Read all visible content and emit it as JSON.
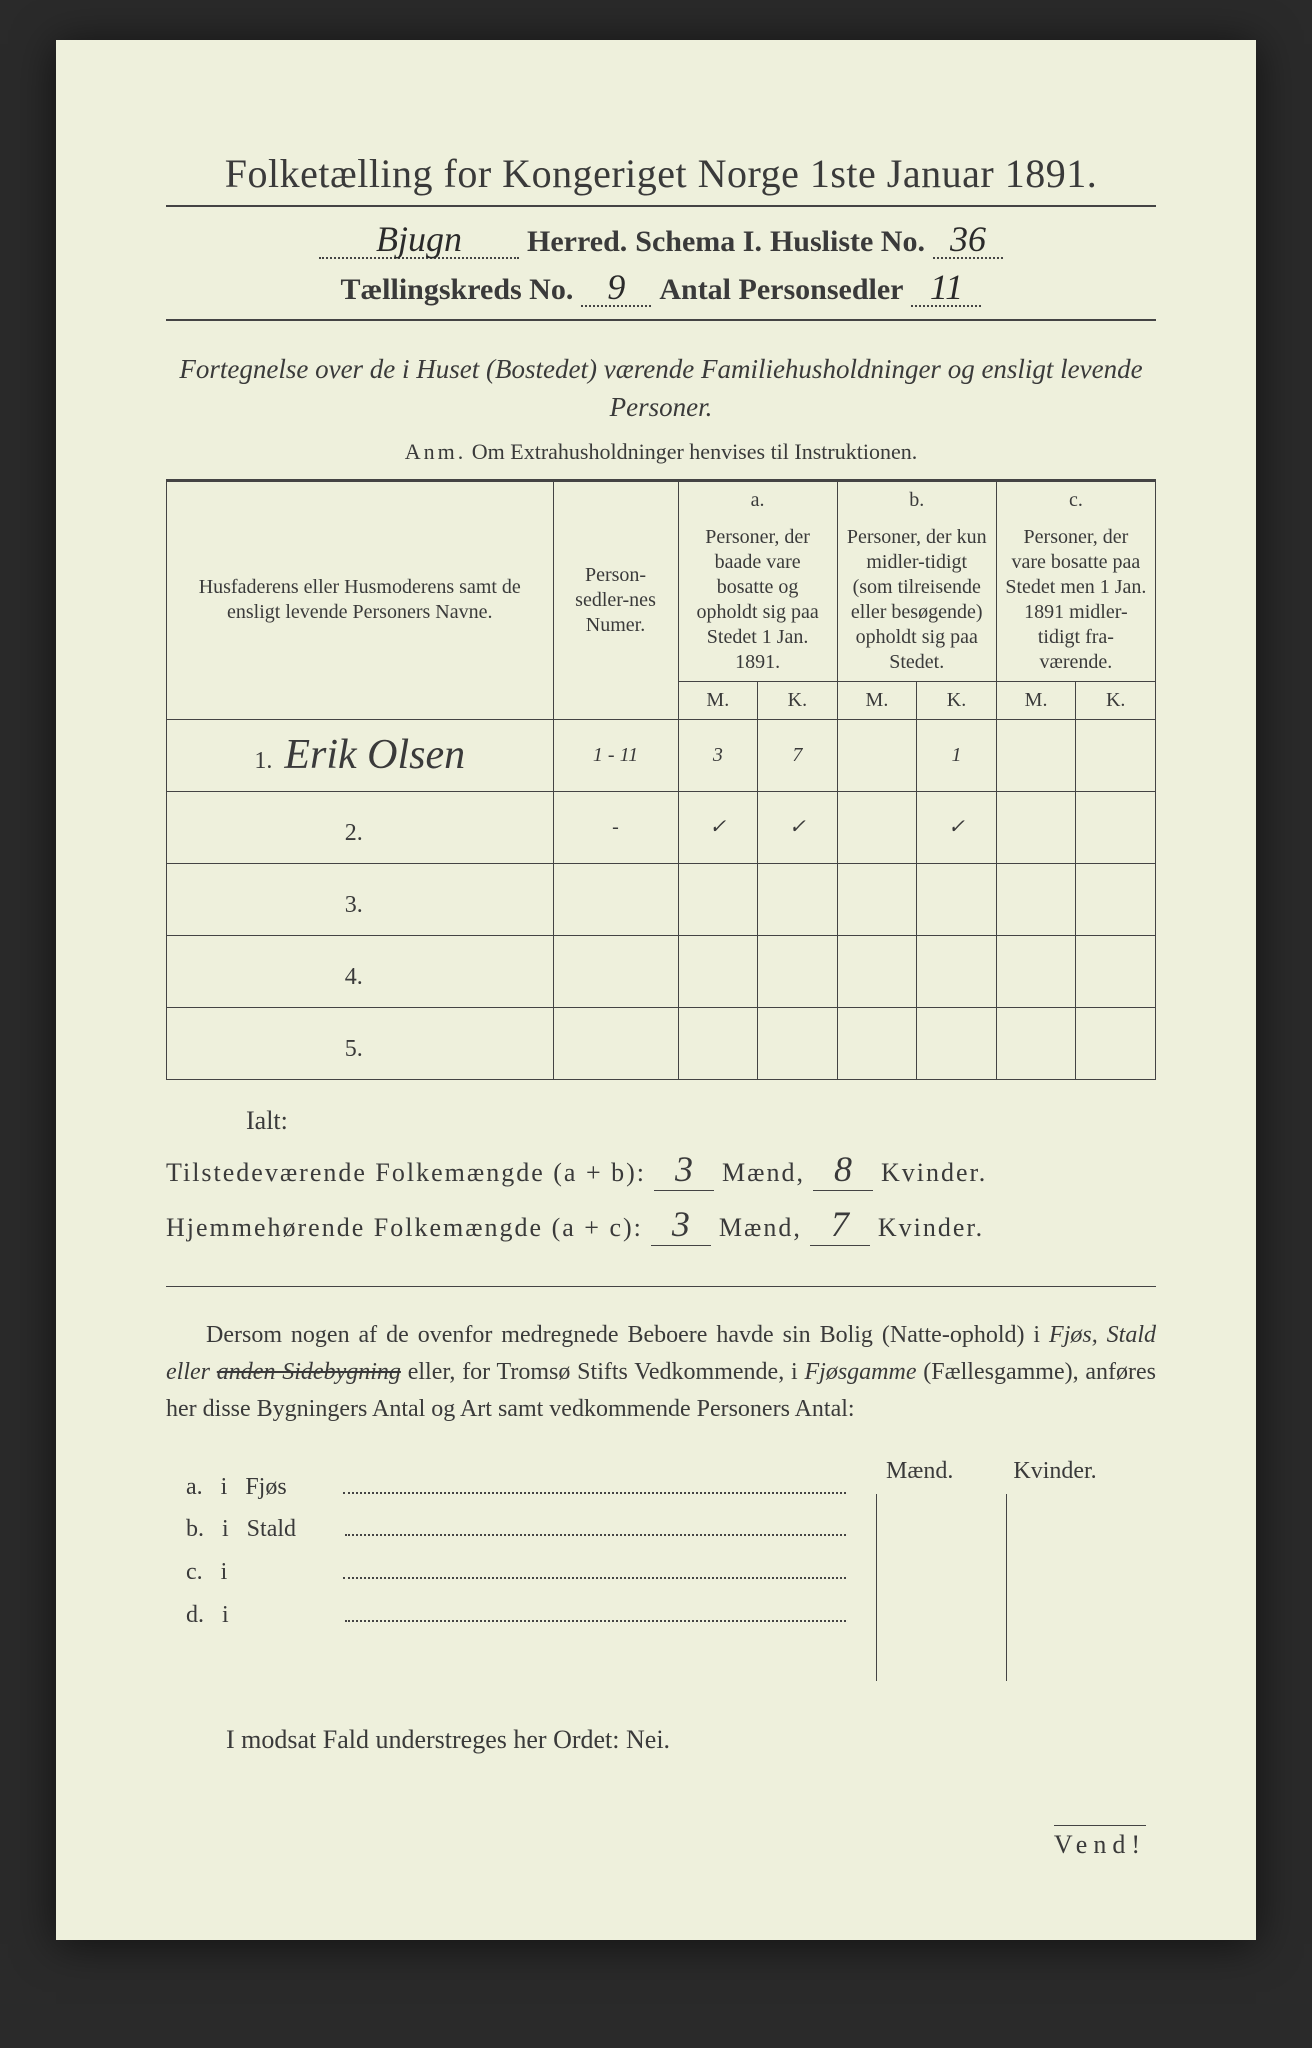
{
  "title": "Folketælling for Kongeriget Norge 1ste Januar 1891.",
  "line2": {
    "herred_hand": "Bjugn",
    "herred_lbl": "Herred.",
    "schema_lbl": "Schema I.",
    "husliste_lbl": "Husliste No.",
    "husliste_hand": "36"
  },
  "line3": {
    "kreds_lbl": "Tællingskreds No.",
    "kreds_hand": "9",
    "antal_lbl": "Antal Personsedler",
    "antal_hand": "11"
  },
  "subtitle": "Fortegnelse over de i Huset (Bostedet) værende Familiehusholdninger og ensligt levende Personer.",
  "anm_prefix": "Anm.",
  "anm_text": "Om Extrahusholdninger henvises til Instruktionen.",
  "table": {
    "col_names_hdr": "Husfaderens eller Husmoderens samt de ensligt levende Personers Navne.",
    "col_num_hdr": "Person-sedler-nes Numer.",
    "group_a": "a.",
    "group_a_txt": "Personer, der baade vare bosatte og opholdt sig paa Stedet 1 Jan. 1891.",
    "group_b": "b.",
    "group_b_txt": "Personer, der kun midler-tidigt (som tilreisende eller besøgende) opholdt sig paa Stedet.",
    "group_c": "c.",
    "group_c_txt": "Personer, der vare bosatte paa Stedet men 1 Jan. 1891 midler-tidigt fra-værende.",
    "m": "M.",
    "k": "K.",
    "rows": [
      {
        "n": "1.",
        "name": "Erik Olsen",
        "num": "1 - 11",
        "aM": "3",
        "aK": "7",
        "bM": "",
        "bK": "1",
        "cM": "",
        "cK": ""
      },
      {
        "n": "2.",
        "name": "",
        "num": "-",
        "aM": "✓",
        "aK": "✓",
        "bM": "",
        "bK": "✓",
        "cM": "",
        "cK": ""
      },
      {
        "n": "3.",
        "name": "",
        "num": "",
        "aM": "",
        "aK": "",
        "bM": "",
        "bK": "",
        "cM": "",
        "cK": ""
      },
      {
        "n": "4.",
        "name": "",
        "num": "",
        "aM": "",
        "aK": "",
        "bM": "",
        "bK": "",
        "cM": "",
        "cK": ""
      },
      {
        "n": "5.",
        "name": "",
        "num": "",
        "aM": "",
        "aK": "",
        "bM": "",
        "bK": "",
        "cM": "",
        "cK": ""
      }
    ]
  },
  "ialt": "Ialt:",
  "tot1": {
    "label": "Tilstedeværende Folkemængde (a + b):",
    "m": "3",
    "mlbl": "Mænd,",
    "k": "8",
    "klbl": "Kvinder."
  },
  "tot2": {
    "label": "Hjemmehørende Folkemængde (a + c):",
    "m": "3",
    "mlbl": "Mænd,",
    "k": "7",
    "klbl": "Kvinder."
  },
  "para_pre": "Dersom nogen af de ovenfor medregnede Beboere havde sin Bolig (Natte-ophold) i ",
  "para_em1": "Fjøs, Stald eller ",
  "para_strike": "anden Sidebygning",
  "para_mid": " eller, for Tromsø Stifts Vedkommende, i ",
  "para_em2": "Fjøsgamme",
  "para_paren": " (Fællesgamme), anføres her disse Bygningers Antal og Art samt vedkommende Personers Antal:",
  "mk_m": "Mænd.",
  "mk_k": "Kvinder.",
  "bldg": [
    {
      "l": "a.",
      "i": "i",
      "t": "Fjøs"
    },
    {
      "l": "b.",
      "i": "i",
      "t": "Stald"
    },
    {
      "l": "c.",
      "i": "i",
      "t": ""
    },
    {
      "l": "d.",
      "i": "i",
      "t": ""
    }
  ],
  "nei_line": "I modsat Fald understreges her Ordet: Nei.",
  "vend": "Vend!"
}
